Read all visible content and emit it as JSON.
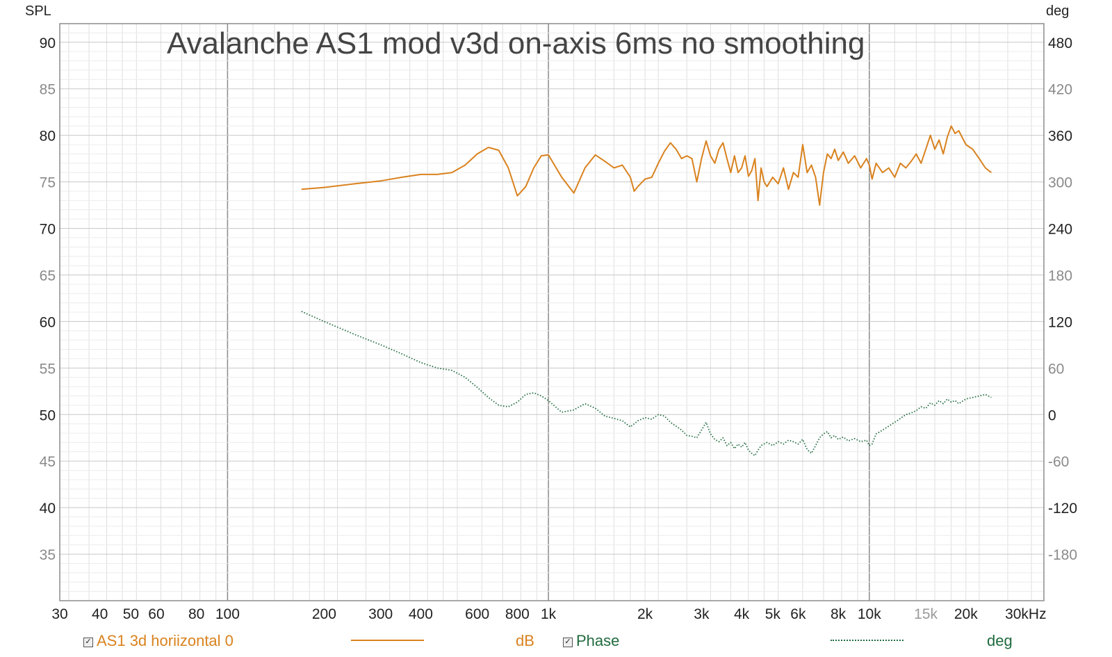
{
  "chart_data": {
    "type": "line",
    "title": "Avalanche AS1 mod v3d on-axis 6ms no smoothing",
    "ylabel_left": "SPL",
    "ylabel_right": "deg",
    "x_scale": "log",
    "xlim": [
      30,
      35000
    ],
    "ylim_left": [
      30,
      92
    ],
    "ylim_right": [
      -240,
      504
    ],
    "grid": true,
    "x_ticks": [
      {
        "v": 30,
        "label": "30"
      },
      {
        "v": 40,
        "label": "40"
      },
      {
        "v": 50,
        "label": "50"
      },
      {
        "v": 60,
        "label": "60"
      },
      {
        "v": 80,
        "label": "80"
      },
      {
        "v": 100,
        "label": "100"
      },
      {
        "v": 200,
        "label": "200"
      },
      {
        "v": 300,
        "label": "300"
      },
      {
        "v": 400,
        "label": "400"
      },
      {
        "v": 600,
        "label": "600"
      },
      {
        "v": 800,
        "label": "800"
      },
      {
        "v": 1000,
        "label": "1k"
      },
      {
        "v": 2000,
        "label": "2k"
      },
      {
        "v": 3000,
        "label": "3k"
      },
      {
        "v": 4000,
        "label": "4k"
      },
      {
        "v": 5000,
        "label": "5k"
      },
      {
        "v": 6000,
        "label": "6k"
      },
      {
        "v": 8000,
        "label": "8k"
      },
      {
        "v": 10000,
        "label": "10k"
      },
      {
        "v": 15000,
        "label": "15k",
        "muted": true
      },
      {
        "v": 20000,
        "label": "20k"
      },
      {
        "v": 30000,
        "label": "30kHz"
      }
    ],
    "y_ticks_left": [
      {
        "v": 90,
        "label": "90"
      },
      {
        "v": 85,
        "label": "85",
        "muted": true
      },
      {
        "v": 80,
        "label": "80"
      },
      {
        "v": 75,
        "label": "75",
        "muted": true
      },
      {
        "v": 70,
        "label": "70"
      },
      {
        "v": 65,
        "label": "65",
        "muted": true
      },
      {
        "v": 60,
        "label": "60"
      },
      {
        "v": 55,
        "label": "55",
        "muted": true
      },
      {
        "v": 50,
        "label": "50"
      },
      {
        "v": 45,
        "label": "45",
        "muted": true
      },
      {
        "v": 40,
        "label": "40"
      },
      {
        "v": 35,
        "label": "35",
        "muted": true
      }
    ],
    "y_ticks_right": [
      {
        "v": 480,
        "label": "480"
      },
      {
        "v": 420,
        "label": "420",
        "muted": true
      },
      {
        "v": 360,
        "label": "360"
      },
      {
        "v": 300,
        "label": "300",
        "muted": true
      },
      {
        "v": 240,
        "label": "240"
      },
      {
        "v": 180,
        "label": "180",
        "muted": true
      },
      {
        "v": 120,
        "label": "120"
      },
      {
        "v": 60,
        "label": "60",
        "muted": true
      },
      {
        "v": 0,
        "label": "0"
      },
      {
        "v": -60,
        "label": "-60",
        "muted": true
      },
      {
        "v": -120,
        "label": "-120"
      },
      {
        "v": -180,
        "label": "-180",
        "muted": true
      }
    ],
    "series": [
      {
        "name": "AS1 3d horiizontal 0",
        "unit": "dB",
        "axis": "left",
        "color": "#d9821e",
        "style": "solid",
        "points": [
          [
            170,
            74.2
          ],
          [
            200,
            74.4
          ],
          [
            250,
            74.8
          ],
          [
            300,
            75.1
          ],
          [
            350,
            75.5
          ],
          [
            400,
            75.8
          ],
          [
            450,
            75.8
          ],
          [
            500,
            76.0
          ],
          [
            550,
            76.8
          ],
          [
            600,
            78.0
          ],
          [
            650,
            78.7
          ],
          [
            700,
            78.4
          ],
          [
            750,
            76.5
          ],
          [
            800,
            73.5
          ],
          [
            850,
            74.5
          ],
          [
            900,
            76.5
          ],
          [
            950,
            77.8
          ],
          [
            1000,
            77.9
          ],
          [
            1100,
            75.5
          ],
          [
            1200,
            73.8
          ],
          [
            1300,
            76.5
          ],
          [
            1400,
            77.9
          ],
          [
            1500,
            77.2
          ],
          [
            1600,
            76.5
          ],
          [
            1700,
            76.8
          ],
          [
            1800,
            75.5
          ],
          [
            1850,
            74.0
          ],
          [
            1900,
            74.5
          ],
          [
            2000,
            75.3
          ],
          [
            2100,
            75.5
          ],
          [
            2200,
            77.0
          ],
          [
            2300,
            78.3
          ],
          [
            2400,
            79.2
          ],
          [
            2500,
            78.5
          ],
          [
            2600,
            77.5
          ],
          [
            2700,
            77.8
          ],
          [
            2800,
            77.5
          ],
          [
            2900,
            75.0
          ],
          [
            3000,
            77.5
          ],
          [
            3100,
            79.4
          ],
          [
            3200,
            77.8
          ],
          [
            3300,
            77.0
          ],
          [
            3400,
            78.5
          ],
          [
            3500,
            79.2
          ],
          [
            3600,
            77.5
          ],
          [
            3700,
            76.0
          ],
          [
            3800,
            77.8
          ],
          [
            3900,
            76.0
          ],
          [
            4000,
            76.5
          ],
          [
            4100,
            77.8
          ],
          [
            4200,
            75.6
          ],
          [
            4300,
            76.2
          ],
          [
            4400,
            77.5
          ],
          [
            4500,
            73.0
          ],
          [
            4600,
            76.5
          ],
          [
            4700,
            75.0
          ],
          [
            4800,
            74.5
          ],
          [
            5000,
            75.5
          ],
          [
            5200,
            74.8
          ],
          [
            5400,
            76.5
          ],
          [
            5600,
            74.2
          ],
          [
            5800,
            76.0
          ],
          [
            6000,
            75.5
          ],
          [
            6200,
            79.0
          ],
          [
            6400,
            76.0
          ],
          [
            6600,
            76.8
          ],
          [
            6800,
            75.5
          ],
          [
            7000,
            72.5
          ],
          [
            7200,
            76.0
          ],
          [
            7400,
            78.0
          ],
          [
            7600,
            77.5
          ],
          [
            7800,
            78.5
          ],
          [
            8000,
            77.3
          ],
          [
            8300,
            78.2
          ],
          [
            8600,
            77.0
          ],
          [
            9000,
            77.8
          ],
          [
            9400,
            76.5
          ],
          [
            9800,
            77.5
          ],
          [
            10000,
            76.8
          ],
          [
            10200,
            75.3
          ],
          [
            10500,
            77.0
          ],
          [
            11000,
            76.0
          ],
          [
            11500,
            76.5
          ],
          [
            12000,
            75.5
          ],
          [
            12500,
            77.0
          ],
          [
            13000,
            76.5
          ],
          [
            13500,
            77.2
          ],
          [
            14000,
            78.0
          ],
          [
            14500,
            77.0
          ],
          [
            15000,
            78.5
          ],
          [
            15500,
            80.0
          ],
          [
            16000,
            78.5
          ],
          [
            16500,
            79.5
          ],
          [
            17000,
            78.0
          ],
          [
            17500,
            79.8
          ],
          [
            18000,
            81.0
          ],
          [
            18500,
            80.2
          ],
          [
            19000,
            80.5
          ],
          [
            20000,
            79.0
          ],
          [
            21000,
            78.5
          ],
          [
            22000,
            77.5
          ],
          [
            23000,
            76.5
          ],
          [
            24000,
            76.0
          ]
        ]
      },
      {
        "name": "Phase",
        "unit": "deg",
        "axis": "right",
        "color": "#1f6b3e",
        "style": "dotted",
        "points": [
          [
            170,
            133
          ],
          [
            200,
            120
          ],
          [
            250,
            103
          ],
          [
            300,
            90
          ],
          [
            350,
            78
          ],
          [
            400,
            67
          ],
          [
            450,
            60
          ],
          [
            500,
            57
          ],
          [
            550,
            48
          ],
          [
            600,
            35
          ],
          [
            650,
            22
          ],
          [
            700,
            12
          ],
          [
            750,
            10
          ],
          [
            800,
            16
          ],
          [
            850,
            26
          ],
          [
            900,
            28
          ],
          [
            950,
            24
          ],
          [
            1000,
            18
          ],
          [
            1100,
            3
          ],
          [
            1200,
            6
          ],
          [
            1300,
            14
          ],
          [
            1400,
            8
          ],
          [
            1500,
            -2
          ],
          [
            1600,
            -5
          ],
          [
            1700,
            -8
          ],
          [
            1800,
            -16
          ],
          [
            1900,
            -8
          ],
          [
            2000,
            -4
          ],
          [
            2100,
            -6
          ],
          [
            2200,
            0
          ],
          [
            2300,
            -2
          ],
          [
            2400,
            -10
          ],
          [
            2500,
            -15
          ],
          [
            2600,
            -20
          ],
          [
            2700,
            -27
          ],
          [
            2800,
            -28
          ],
          [
            2900,
            -30
          ],
          [
            3000,
            -20
          ],
          [
            3100,
            -10
          ],
          [
            3200,
            -25
          ],
          [
            3300,
            -32
          ],
          [
            3400,
            -35
          ],
          [
            3500,
            -30
          ],
          [
            3600,
            -40
          ],
          [
            3700,
            -36
          ],
          [
            3800,
            -44
          ],
          [
            3900,
            -38
          ],
          [
            4000,
            -42
          ],
          [
            4100,
            -36
          ],
          [
            4200,
            -46
          ],
          [
            4300,
            -50
          ],
          [
            4400,
            -53
          ],
          [
            4500,
            -46
          ],
          [
            4600,
            -40
          ],
          [
            4800,
            -36
          ],
          [
            5000,
            -40
          ],
          [
            5200,
            -35
          ],
          [
            5400,
            -38
          ],
          [
            5600,
            -33
          ],
          [
            5800,
            -35
          ],
          [
            6000,
            -38
          ],
          [
            6200,
            -32
          ],
          [
            6400,
            -45
          ],
          [
            6600,
            -50
          ],
          [
            6800,
            -40
          ],
          [
            7000,
            -30
          ],
          [
            7200,
            -25
          ],
          [
            7400,
            -22
          ],
          [
            7600,
            -30
          ],
          [
            7800,
            -27
          ],
          [
            8000,
            -32
          ],
          [
            8300,
            -29
          ],
          [
            8600,
            -34
          ],
          [
            9000,
            -31
          ],
          [
            9400,
            -35
          ],
          [
            9800,
            -33
          ],
          [
            10000,
            -40
          ],
          [
            10200,
            -38
          ],
          [
            10500,
            -25
          ],
          [
            11000,
            -20
          ],
          [
            11500,
            -15
          ],
          [
            12000,
            -10
          ],
          [
            12500,
            -5
          ],
          [
            13000,
            0
          ],
          [
            13500,
            2
          ],
          [
            14000,
            5
          ],
          [
            14500,
            10
          ],
          [
            15000,
            8
          ],
          [
            15500,
            15
          ],
          [
            16000,
            12
          ],
          [
            16500,
            18
          ],
          [
            17000,
            14
          ],
          [
            17500,
            20
          ],
          [
            18000,
            16
          ],
          [
            18500,
            18
          ],
          [
            19000,
            14
          ],
          [
            20000,
            20
          ],
          [
            21000,
            22
          ],
          [
            22000,
            24
          ],
          [
            23000,
            26
          ],
          [
            24000,
            22
          ]
        ]
      }
    ]
  }
}
